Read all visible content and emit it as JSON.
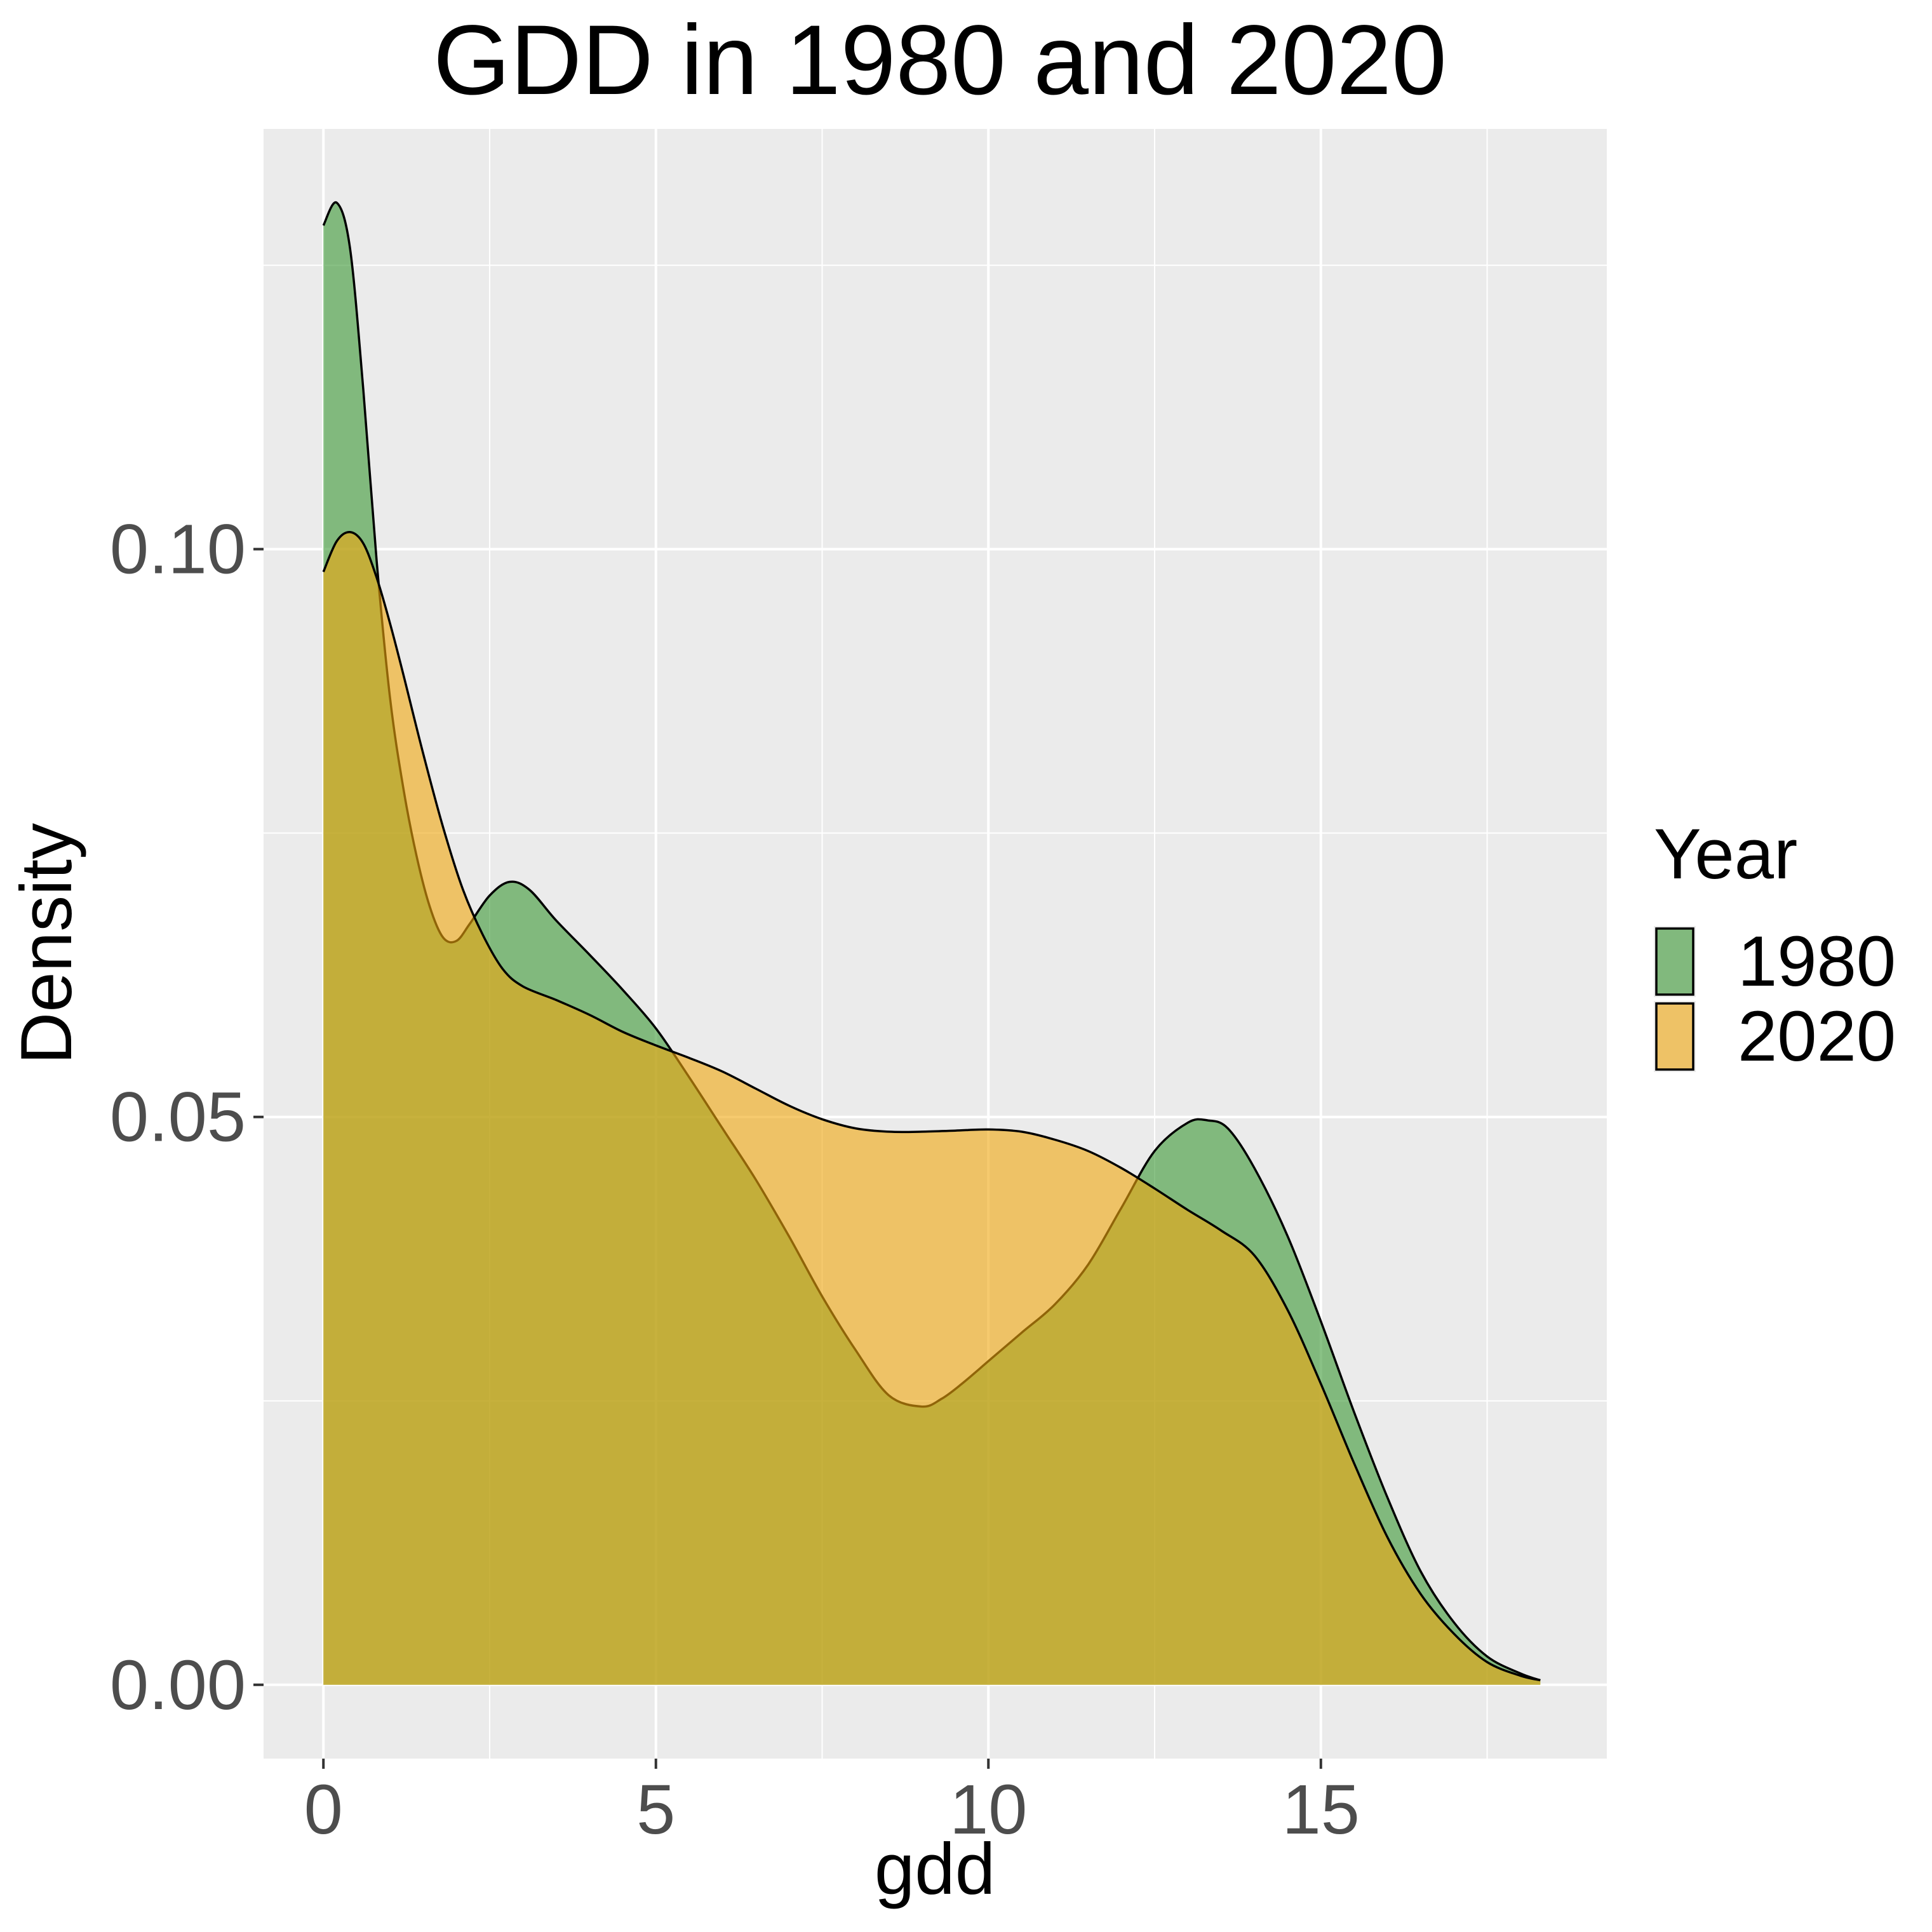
{
  "chart_data": {
    "type": "area",
    "title": "GDD in 1980 and 2020",
    "xlabel": "gdd",
    "ylabel": "Density",
    "xlim": [
      -0.9,
      19.3
    ],
    "ylim": [
      -0.0065,
      0.137
    ],
    "x_ticks": [
      0,
      5,
      10,
      15
    ],
    "x_tick_labels": [
      "0",
      "5",
      "10",
      "15"
    ],
    "y_ticks": [
      0.0,
      0.05,
      0.1
    ],
    "y_tick_labels": [
      "0.00",
      "0.05",
      "0.10"
    ],
    "x_minor_ticks": [
      2.5,
      7.5,
      12.5,
      17.5
    ],
    "y_minor_ticks": [
      0.025,
      0.075,
      0.125
    ],
    "grid": true,
    "legend": {
      "title": "Year",
      "position": "right"
    },
    "series": [
      {
        "name": "1980",
        "color": "#3b9733",
        "x": [
          0,
          0.2,
          0.4,
          0.6,
          0.8,
          1.0,
          1.2,
          1.4,
          1.6,
          1.8,
          2.0,
          2.2,
          2.5,
          2.8,
          3.1,
          3.5,
          4.0,
          4.5,
          5.0,
          5.5,
          6.0,
          6.5,
          7.0,
          7.5,
          8.0,
          8.5,
          9.0,
          9.3,
          9.6,
          10.0,
          10.5,
          11.0,
          11.5,
          12.0,
          12.5,
          13.0,
          13.3,
          13.6,
          14.0,
          14.5,
          15.0,
          15.5,
          16.0,
          16.5,
          17.0,
          17.5,
          18.0,
          18.3
        ],
        "values": [
          0.1285,
          0.1305,
          0.1265,
          0.114,
          0.099,
          0.087,
          0.079,
          0.073,
          0.0685,
          0.0658,
          0.0655,
          0.067,
          0.0695,
          0.0707,
          0.07,
          0.0673,
          0.0643,
          0.0612,
          0.0578,
          0.0535,
          0.049,
          0.0445,
          0.0395,
          0.0342,
          0.0295,
          0.0255,
          0.0245,
          0.0252,
          0.0265,
          0.0285,
          0.031,
          0.0335,
          0.037,
          0.042,
          0.047,
          0.0495,
          0.0497,
          0.049,
          0.0455,
          0.0395,
          0.032,
          0.024,
          0.0165,
          0.01,
          0.0055,
          0.0025,
          0.001,
          0.0004
        ]
      },
      {
        "name": "2020",
        "color": "#f0a70d",
        "x": [
          0,
          0.2,
          0.4,
          0.6,
          0.8,
          1.0,
          1.2,
          1.5,
          1.8,
          2.1,
          2.4,
          2.7,
          3.0,
          3.5,
          4.0,
          4.5,
          5.0,
          5.5,
          6.0,
          6.5,
          7.0,
          7.5,
          8.0,
          8.5,
          9.0,
          9.5,
          10.0,
          10.5,
          11.0,
          11.5,
          12.0,
          12.5,
          13.0,
          13.5,
          14.0,
          14.5,
          15.0,
          15.5,
          16.0,
          16.5,
          17.0,
          17.5,
          18.0,
          18.3
        ],
        "values": [
          0.098,
          0.1007,
          0.1015,
          0.1005,
          0.0975,
          0.0935,
          0.089,
          0.082,
          0.0755,
          0.07,
          0.066,
          0.063,
          0.0615,
          0.0603,
          0.059,
          0.0575,
          0.0563,
          0.0552,
          0.054,
          0.0525,
          0.051,
          0.0498,
          0.049,
          0.0487,
          0.0487,
          0.0488,
          0.0489,
          0.0487,
          0.048,
          0.047,
          0.0455,
          0.0437,
          0.0418,
          0.04,
          0.0378,
          0.033,
          0.0265,
          0.0195,
          0.013,
          0.008,
          0.0045,
          0.002,
          0.0008,
          0.0004
        ]
      }
    ]
  }
}
